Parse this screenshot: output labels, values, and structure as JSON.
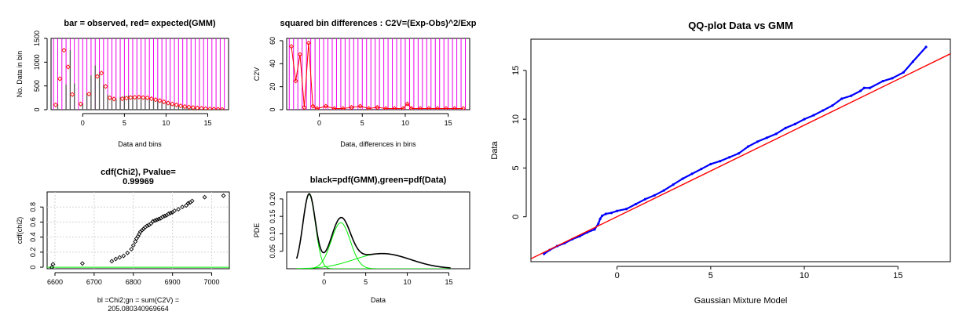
{
  "colors": {
    "magenta": "#ee00ee",
    "red": "#ff0000",
    "green": "#00ee00",
    "blue": "#0000ff",
    "black": "#000000",
    "grid": "#d3d3d3"
  },
  "chart_data": [
    {
      "id": "p1",
      "type": "bar",
      "title": "bar = observed, red= expected(GMM)",
      "xlabel": "Data and bins",
      "ylabel": "No. Data in bin",
      "xlim": [
        -3.8,
        17.5
      ],
      "ylim": [
        0,
        1500
      ],
      "xticks": [
        0,
        5,
        10,
        15
      ],
      "yticks": [
        0,
        500,
        1000,
        1500
      ],
      "bin_edges": [
        -3.5,
        -3,
        -2.5,
        -2,
        -1.5,
        -1,
        -0.5,
        0,
        0.5,
        1,
        1.5,
        2,
        2.5,
        3,
        3.5,
        4,
        4.5,
        5,
        5.5,
        6,
        6.5,
        7,
        7.5,
        8,
        8.5,
        9,
        9.5,
        10,
        10.5,
        11,
        11.5,
        12,
        12.5,
        13,
        13.5,
        14,
        14.5,
        15,
        15.5,
        16,
        16.5,
        17
      ],
      "observed": {
        "x": [
          -3,
          -2,
          -1.5,
          -1,
          0,
          0.5,
          1,
          1.5,
          2,
          2.5,
          3,
          3.5,
          4,
          4.5,
          5,
          5.5,
          6,
          6.5,
          7,
          7.5,
          8,
          8.5,
          9,
          9.5,
          10,
          10.5,
          11,
          11.5,
          12,
          12.5,
          13,
          13.5,
          14,
          14.5,
          15,
          15.5,
          16,
          16.5
        ],
        "values": [
          120,
          530,
          1250,
          550,
          130,
          350,
          720,
          930,
          760,
          520,
          320,
          230,
          230,
          270,
          290,
          300,
          290,
          260,
          250,
          240,
          230,
          220,
          180,
          160,
          140,
          120,
          100,
          90,
          75,
          60,
          50,
          45,
          35,
          30,
          25,
          20,
          15,
          10
        ]
      },
      "expected": {
        "x": [
          -3.25,
          -2.75,
          -2.25,
          -1.75,
          -1.25,
          -0.25,
          0.75,
          1.75,
          2.25,
          2.75,
          3.25,
          3.75,
          4.75,
          5.25,
          5.75,
          6.25,
          6.75,
          7.25,
          7.75,
          8.25,
          8.75,
          9.25,
          9.75,
          10.25,
          10.75,
          11.25,
          11.75,
          12.25,
          12.75,
          13.25,
          13.75,
          14.25,
          14.75,
          15.25,
          15.75,
          16.25,
          16.75
        ],
        "values": [
          100,
          650,
          1250,
          900,
          320,
          120,
          330,
          700,
          770,
          490,
          250,
          225,
          230,
          245,
          255,
          260,
          265,
          255,
          250,
          230,
          210,
          190,
          165,
          140,
          120,
          100,
          80,
          65,
          55,
          45,
          35,
          28,
          20,
          15,
          10,
          8,
          5
        ]
      }
    },
    {
      "id": "p2",
      "type": "line",
      "title": "squared bin differences : C2V=(Exp-Obs)^2/Exp",
      "xlabel": "Data, differences in bins",
      "ylabel": "C2V",
      "xlim": [
        -3.8,
        17.5
      ],
      "ylim": [
        0,
        62
      ],
      "xticks": [
        0,
        5,
        10,
        15
      ],
      "yticks": [
        0,
        20,
        40,
        60
      ],
      "x": [
        -3.25,
        -2.75,
        -2.25,
        -1.75,
        -1.25,
        -0.75,
        -0.25,
        0.75,
        1.75,
        2.75,
        3.75,
        4.75,
        5.75,
        6.75,
        7.75,
        8.75,
        9.75,
        10.25,
        10.75,
        11.75,
        12.75,
        13.75,
        14.75,
        15.75,
        16.75
      ],
      "values": [
        55,
        25,
        48,
        2,
        58,
        3,
        1,
        3,
        1,
        1,
        2,
        3,
        1,
        2,
        1,
        1,
        1,
        5,
        1,
        1,
        1,
        1,
        1,
        1,
        1
      ]
    },
    {
      "id": "p3",
      "type": "scatter",
      "title": "cdf(Chi2), Pvalue=",
      "title2": "0.99969",
      "xlabel": "bl =Chi2;gn = sum(C2V) =",
      "xlabel2": "205.080340969664",
      "ylabel": "cdf(chi2)",
      "xlim": [
        6580,
        7045
      ],
      "ylim": [
        -0.02,
        1.0
      ],
      "xticks": [
        6600,
        6700,
        6800,
        6900,
        7000
      ],
      "yticks": [
        0.0,
        0.2,
        0.4,
        0.6,
        0.8
      ],
      "grid": true,
      "x": [
        6592,
        6595,
        6670,
        6745,
        6755,
        6765,
        6775,
        6785,
        6795,
        6800,
        6805,
        6808,
        6812,
        6815,
        6818,
        6822,
        6826,
        6830,
        6835,
        6840,
        6845,
        6850,
        6855,
        6860,
        6865,
        6870,
        6875,
        6880,
        6885,
        6890,
        6895,
        6900,
        6905,
        6915,
        6925,
        6935,
        6940,
        6945,
        6950,
        6982,
        7030
      ],
      "values": [
        0.0,
        0.04,
        0.05,
        0.08,
        0.11,
        0.13,
        0.15,
        0.19,
        0.24,
        0.29,
        0.34,
        0.38,
        0.41,
        0.44,
        0.47,
        0.49,
        0.51,
        0.53,
        0.55,
        0.56,
        0.58,
        0.61,
        0.62,
        0.63,
        0.64,
        0.65,
        0.67,
        0.68,
        0.69,
        0.71,
        0.72,
        0.73,
        0.75,
        0.77,
        0.8,
        0.82,
        0.85,
        0.86,
        0.88,
        0.93,
        0.95
      ],
      "reference_line": {
        "x": [
          6580,
          7045
        ],
        "values": [
          0.0,
          0.0
        ]
      }
    },
    {
      "id": "p4",
      "type": "line",
      "title": "black=pdf(GMM),green=pdf(Data)",
      "xlabel": "Data",
      "ylabel": "PDE",
      "xlim": [
        -4.5,
        17.5
      ],
      "ylim": [
        0,
        0.22
      ],
      "xticks": [
        0,
        5,
        10,
        15
      ],
      "yticks": [
        0.05,
        0.1,
        0.15,
        0.2
      ],
      "ytick_labels": [
        "0.05",
        "0.10",
        "0.15",
        "0.20"
      ],
      "gmm_components": [
        {
          "mean": -1.8,
          "sd": 0.75,
          "weight": 0.4
        },
        {
          "mean": 2.0,
          "sd": 1.15,
          "weight": 0.38
        },
        {
          "mean": 7.0,
          "sd": 3.4,
          "weight": 0.37
        }
      ]
    },
    {
      "id": "p5",
      "type": "scatter",
      "title": "QQ-plot Data vs GMM",
      "xlabel": "Gaussian Mixture Model",
      "ylabel": "Data",
      "xlim": [
        -4.6,
        17.8
      ],
      "ylim": [
        -4.6,
        18.2
      ],
      "xticks": [
        0,
        5,
        10,
        15
      ],
      "yticks": [
        0,
        5,
        10,
        15
      ],
      "points": [
        [
          -3.9,
          -3.8
        ],
        [
          -3.6,
          -3.4
        ],
        [
          -3.2,
          -3.0
        ],
        [
          -2.8,
          -2.7
        ],
        [
          -2.4,
          -2.3
        ],
        [
          -2.0,
          -2.0
        ],
        [
          -1.6,
          -1.6
        ],
        [
          -1.2,
          -1.3
        ],
        [
          -1.0,
          -0.7
        ],
        [
          -0.9,
          -0.2
        ],
        [
          -0.8,
          0.1
        ],
        [
          -0.6,
          0.3
        ],
        [
          -0.3,
          0.4
        ],
        [
          0.0,
          0.6
        ],
        [
          0.5,
          0.8
        ],
        [
          1.0,
          1.3
        ],
        [
          1.5,
          1.8
        ],
        [
          2.0,
          2.2
        ],
        [
          2.5,
          2.7
        ],
        [
          3.0,
          3.3
        ],
        [
          3.5,
          3.9
        ],
        [
          4.0,
          4.4
        ],
        [
          4.5,
          4.9
        ],
        [
          5.0,
          5.4
        ],
        [
          5.5,
          5.7
        ],
        [
          6.0,
          6.1
        ],
        [
          6.5,
          6.5
        ],
        [
          7.0,
          7.2
        ],
        [
          7.5,
          7.7
        ],
        [
          8.0,
          8.1
        ],
        [
          8.5,
          8.5
        ],
        [
          9.0,
          9.1
        ],
        [
          9.5,
          9.5
        ],
        [
          10.0,
          10.0
        ],
        [
          10.5,
          10.4
        ],
        [
          11.0,
          10.9
        ],
        [
          11.5,
          11.4
        ],
        [
          12.0,
          12.1
        ],
        [
          12.5,
          12.4
        ],
        [
          13.0,
          12.9
        ],
        [
          13.2,
          13.2
        ],
        [
          13.5,
          13.2
        ],
        [
          14.2,
          13.9
        ],
        [
          14.7,
          14.2
        ],
        [
          15.3,
          14.8
        ],
        [
          15.8,
          15.9
        ],
        [
          16.5,
          17.4
        ]
      ],
      "reference_line": {
        "x": [
          -4.6,
          17.8
        ],
        "values": [
          -4.3,
          16.7
        ]
      }
    }
  ]
}
